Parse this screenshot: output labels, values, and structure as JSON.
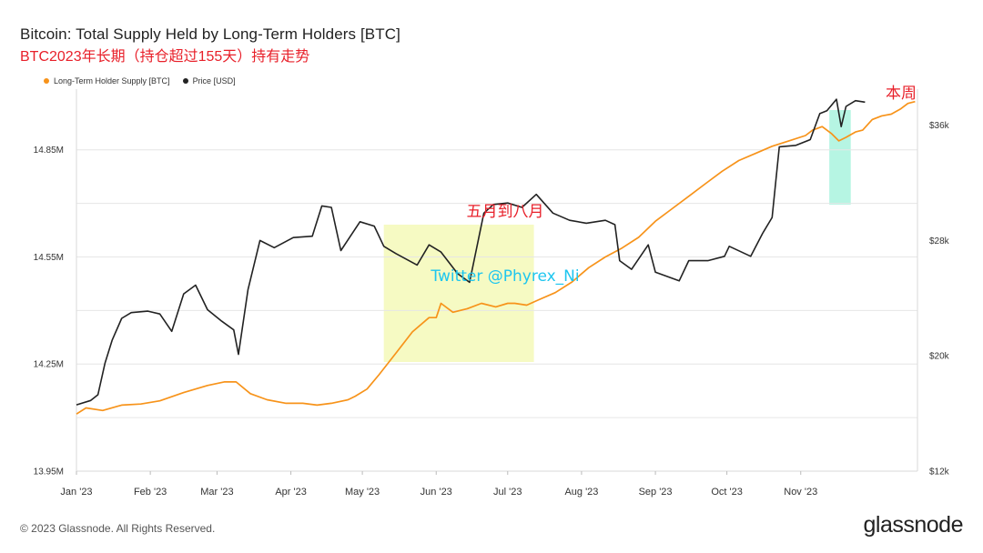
{
  "title": "Bitcoin: Total Supply Held by Long-Term Holders [BTC]",
  "subtitle": "BTC2023年长期（持仓超过155天）持有走势",
  "legend": [
    {
      "label": "Long-Term Holder Supply [BTC]",
      "color": "#f7931a"
    },
    {
      "label": "Price [USD]",
      "color": "#222222"
    }
  ],
  "footer": "© 2023 Glassnode. All Rights Reserved.",
  "brand": "glassnode",
  "annotations": {
    "may_aug": "五月到八月",
    "this_week": "本周",
    "watermark": "Twitter @Phyrex_Ni"
  },
  "chart_data": {
    "type": "line",
    "x_tick_labels": [
      "Jan '23",
      "Feb '23",
      "Mar '23",
      "Apr '23",
      "May '23",
      "Jun '23",
      "Jul '23",
      "Aug '23",
      "Sep '23",
      "Oct '23",
      "Nov '23"
    ],
    "left_axis": {
      "ticks": [
        "13.95M",
        "14.25M",
        "14.55M",
        "14.85M"
      ],
      "range": [
        13.95,
        15.02
      ],
      "unit": "M BTC"
    },
    "right_axis": {
      "ticks": [
        "$12k",
        "$20k",
        "$28k",
        "$36k"
      ],
      "range": [
        12000,
        38500
      ],
      "unit": "USD"
    },
    "highlights": [
      {
        "from": "2023-05-10",
        "to": "2023-07-12",
        "color": "#f4f9b8"
      },
      {
        "from": "2023-11-13",
        "to": "2023-11-22",
        "color": "#9df2da"
      }
    ],
    "series": [
      {
        "name": "Long-Term Holder Supply [BTC]",
        "color": "#f7931a",
        "axis": "left",
        "points": [
          [
            "2023-01-01",
            14.11
          ],
          [
            "2023-01-05",
            14.127
          ],
          [
            "2023-01-12",
            14.12
          ],
          [
            "2023-01-20",
            14.135
          ],
          [
            "2023-01-28",
            14.138
          ],
          [
            "2023-02-05",
            14.147
          ],
          [
            "2023-02-15",
            14.17
          ],
          [
            "2023-02-25",
            14.19
          ],
          [
            "2023-03-04",
            14.2
          ],
          [
            "2023-03-09",
            14.2
          ],
          [
            "2023-03-15",
            14.167
          ],
          [
            "2023-03-22",
            14.15
          ],
          [
            "2023-03-30",
            14.14
          ],
          [
            "2023-04-06",
            14.14
          ],
          [
            "2023-04-12",
            14.135
          ],
          [
            "2023-04-18",
            14.14
          ],
          [
            "2023-04-25",
            14.15
          ],
          [
            "2023-04-28",
            14.16
          ],
          [
            "2023-05-03",
            14.18
          ],
          [
            "2023-05-08",
            14.22
          ],
          [
            "2023-05-15",
            14.28
          ],
          [
            "2023-05-22",
            14.34
          ],
          [
            "2023-05-29",
            14.38
          ],
          [
            "2023-06-01",
            14.38
          ],
          [
            "2023-06-03",
            14.42
          ],
          [
            "2023-06-08",
            14.395
          ],
          [
            "2023-06-14",
            14.405
          ],
          [
            "2023-06-20",
            14.42
          ],
          [
            "2023-06-26",
            14.41
          ],
          [
            "2023-07-01",
            14.42
          ],
          [
            "2023-07-04",
            14.42
          ],
          [
            "2023-07-09",
            14.415
          ],
          [
            "2023-07-14",
            14.43
          ],
          [
            "2023-07-21",
            14.45
          ],
          [
            "2023-07-28",
            14.48
          ],
          [
            "2023-08-04",
            14.52
          ],
          [
            "2023-08-11",
            14.55
          ],
          [
            "2023-08-18",
            14.575
          ],
          [
            "2023-08-25",
            14.605
          ],
          [
            "2023-09-01",
            14.65
          ],
          [
            "2023-09-08",
            14.685
          ],
          [
            "2023-09-15",
            14.72
          ],
          [
            "2023-09-22",
            14.755
          ],
          [
            "2023-09-29",
            14.79
          ],
          [
            "2023-10-06",
            14.82
          ],
          [
            "2023-10-13",
            14.84
          ],
          [
            "2023-10-20",
            14.86
          ],
          [
            "2023-10-27",
            14.875
          ],
          [
            "2023-11-03",
            14.89
          ],
          [
            "2023-11-06",
            14.905
          ],
          [
            "2023-11-10",
            14.915
          ],
          [
            "2023-11-14",
            14.895
          ],
          [
            "2023-11-17",
            14.875
          ],
          [
            "2023-11-20",
            14.885
          ],
          [
            "2023-11-24",
            14.9
          ],
          [
            "2023-11-27",
            14.905
          ],
          [
            "2023-12-01",
            14.935
          ],
          [
            "2023-12-05",
            14.945
          ],
          [
            "2023-12-09",
            14.95
          ],
          [
            "2023-12-13",
            14.965
          ],
          [
            "2023-12-16",
            14.98
          ],
          [
            "2023-12-19",
            14.985
          ]
        ]
      },
      {
        "name": "Price [USD]",
        "color": "#222222",
        "axis": "right",
        "points": [
          [
            "2023-01-01",
            16600
          ],
          [
            "2023-01-07",
            16900
          ],
          [
            "2023-01-10",
            17300
          ],
          [
            "2023-01-13",
            19500
          ],
          [
            "2023-01-16",
            21100
          ],
          [
            "2023-01-20",
            22600
          ],
          [
            "2023-01-24",
            23000
          ],
          [
            "2023-01-31",
            23100
          ],
          [
            "2023-02-05",
            22900
          ],
          [
            "2023-02-10",
            21700
          ],
          [
            "2023-02-15",
            24300
          ],
          [
            "2023-02-20",
            24900
          ],
          [
            "2023-02-25",
            23200
          ],
          [
            "2023-03-03",
            22400
          ],
          [
            "2023-03-08",
            21800
          ],
          [
            "2023-03-10",
            20100
          ],
          [
            "2023-03-14",
            24600
          ],
          [
            "2023-03-19",
            28000
          ],
          [
            "2023-03-25",
            27500
          ],
          [
            "2023-04-02",
            28200
          ],
          [
            "2023-04-10",
            28300
          ],
          [
            "2023-04-14",
            30400
          ],
          [
            "2023-04-18",
            30300
          ],
          [
            "2023-04-22",
            27300
          ],
          [
            "2023-04-30",
            29300
          ],
          [
            "2023-05-06",
            29000
          ],
          [
            "2023-05-10",
            27600
          ],
          [
            "2023-05-15",
            27100
          ],
          [
            "2023-05-24",
            26300
          ],
          [
            "2023-05-29",
            27700
          ],
          [
            "2023-06-03",
            27200
          ],
          [
            "2023-06-10",
            25700
          ],
          [
            "2023-06-15",
            25100
          ],
          [
            "2023-06-21",
            29900
          ],
          [
            "2023-06-25",
            30500
          ],
          [
            "2023-07-01",
            30600
          ],
          [
            "2023-07-07",
            30300
          ],
          [
            "2023-07-13",
            31200
          ],
          [
            "2023-07-20",
            29900
          ],
          [
            "2023-07-27",
            29400
          ],
          [
            "2023-08-03",
            29200
          ],
          [
            "2023-08-11",
            29400
          ],
          [
            "2023-08-15",
            29100
          ],
          [
            "2023-08-17",
            26600
          ],
          [
            "2023-08-22",
            26000
          ],
          [
            "2023-08-29",
            27700
          ],
          [
            "2023-09-01",
            25800
          ],
          [
            "2023-09-11",
            25200
          ],
          [
            "2023-09-15",
            26600
          ],
          [
            "2023-09-23",
            26600
          ],
          [
            "2023-09-30",
            26900
          ],
          [
            "2023-10-02",
            27600
          ],
          [
            "2023-10-11",
            26900
          ],
          [
            "2023-10-16",
            28500
          ],
          [
            "2023-10-20",
            29600
          ],
          [
            "2023-10-23",
            34500
          ],
          [
            "2023-10-30",
            34600
          ],
          [
            "2023-11-05",
            35000
          ],
          [
            "2023-11-09",
            36800
          ],
          [
            "2023-11-12",
            37000
          ],
          [
            "2023-11-16",
            37800
          ],
          [
            "2023-11-18",
            35900
          ],
          [
            "2023-11-20",
            37300
          ],
          [
            "2023-11-24",
            37700
          ],
          [
            "2023-11-28",
            37600
          ]
        ]
      }
    ]
  }
}
